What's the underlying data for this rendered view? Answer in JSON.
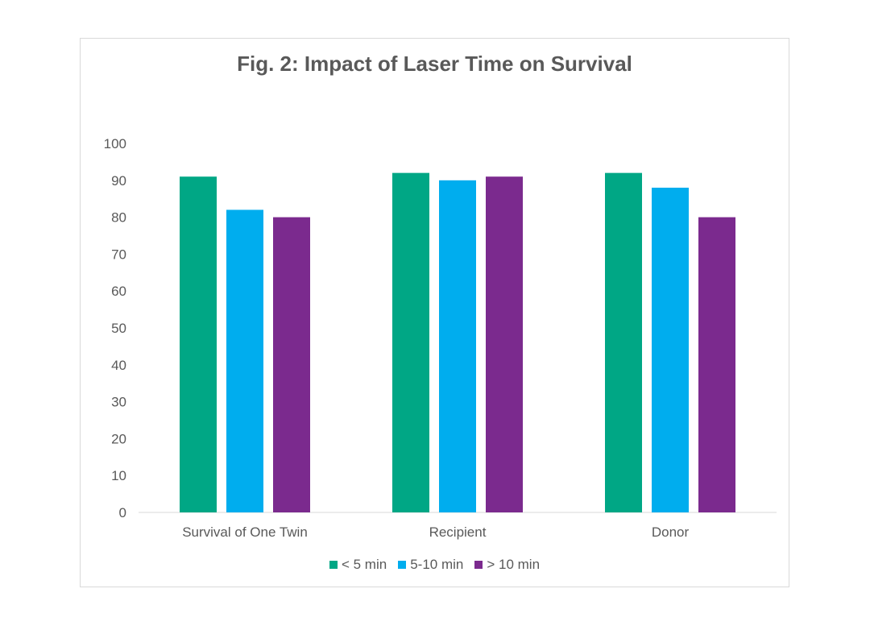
{
  "chart_data": {
    "type": "bar",
    "title": "Fig. 2: Impact of Laser Time on Survival",
    "xlabel": "",
    "ylabel": "",
    "categories": [
      "Survival of One Twin",
      "Recipient",
      "Donor"
    ],
    "series": [
      {
        "name": "< 5 min",
        "color": "#00a785",
        "values": [
          91,
          92,
          92
        ]
      },
      {
        "name": "5-10 min",
        "color": "#00adee",
        "values": [
          82,
          90,
          88
        ]
      },
      {
        "name": "> 10 min",
        "color": "#7b2a8e",
        "values": [
          80,
          91,
          80
        ]
      }
    ],
    "ylim": [
      0,
      100
    ],
    "yticks": [
      0,
      10,
      20,
      30,
      40,
      50,
      60,
      70,
      80,
      90,
      100
    ],
    "grid": false,
    "legend_position": "bottom"
  }
}
